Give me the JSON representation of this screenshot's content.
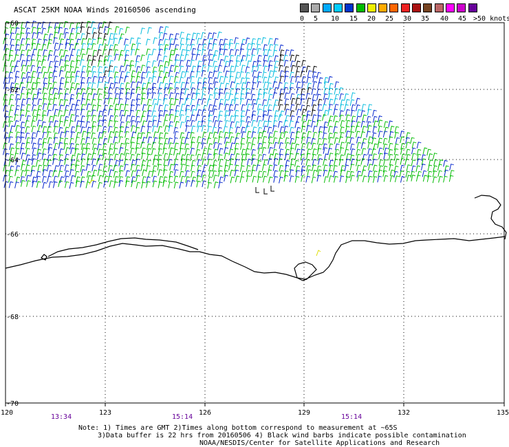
{
  "title": "ASCAT 25KM NOAA Winds 20160506 ascending",
  "legend": {
    "colors": [
      "#555555",
      "#aaaaaa",
      "#00aaff",
      "#00ccff",
      "#0033cc",
      "#00bb00",
      "#eeee00",
      "#ffaa00",
      "#ff6600",
      "#ee2222",
      "#aa1111",
      "#774422",
      "#bb6666",
      "#ff00ff",
      "#cc00cc",
      "#660099"
    ],
    "labels": [
      "0",
      "5",
      "10",
      "15",
      "20",
      "25",
      "30",
      "35",
      "40",
      "45",
      ">50 knots"
    ]
  },
  "axes": {
    "lat_labels": [
      "-60",
      "-62",
      "-64",
      "-66",
      "-68",
      "-70"
    ],
    "lon_labels": [
      "120",
      "123",
      "126",
      "129",
      "132",
      "135"
    ]
  },
  "times": [
    "13:34",
    "15:14",
    "15:14"
  ],
  "note_lines": [
    "Note: 1) Times are GMT 2)Times along bottom correspond to measurement at ~65S",
    "3)Data buffer is 22 hrs from 20160506 4) Black wind barbs indicate possible contamination"
  ],
  "credit": "NOAA/NESDIS/Center for Satellite Applications and Research",
  "wind_colors": {
    "green": "#00bb00",
    "blue": "#0022cc",
    "cyan": "#00bbdd",
    "black": "#000000",
    "yellow": "#dddd00"
  }
}
